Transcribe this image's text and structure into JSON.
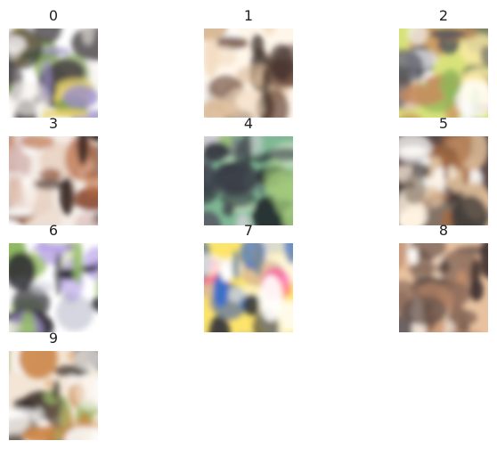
{
  "figure": {
    "panels": [
      {
        "title": "0",
        "palette": [
          "#ffffff",
          "#f6f2ee",
          "#4a4446",
          "#9c8fc8",
          "#e3cf6a",
          "#7a9a4a",
          "#2e2a30"
        ]
      },
      {
        "title": "1",
        "palette": [
          "#fff6ea",
          "#f3dcc2",
          "#e9c9a6",
          "#6a4a3c",
          "#d8b896",
          "#ffffff",
          "#3a2c28"
        ]
      },
      {
        "title": "2",
        "palette": [
          "#d8e27a",
          "#fbeaa6",
          "#8fb85a",
          "#4c4e5a",
          "#f1f0f2",
          "#c88a5a",
          "#ffffff"
        ]
      },
      {
        "title": "3",
        "palette": [
          "#f4ece6",
          "#b8683e",
          "#ffffff",
          "#8a4a30",
          "#d6b8b4",
          "#3c2a26",
          "#e8d2c2"
        ]
      },
      {
        "title": "4",
        "palette": [
          "#7fb894",
          "#3a3e46",
          "#c8e2c2",
          "#555a64",
          "#d0cfd6",
          "#a2c97c",
          "#1e2228"
        ]
      },
      {
        "title": "5",
        "palette": [
          "#5a4a48",
          "#fff2e0",
          "#ffffff",
          "#a86a3e",
          "#2c2a2c",
          "#d8b896",
          "#8a7a6a"
        ]
      },
      {
        "title": "6",
        "palette": [
          "#ffffff",
          "#e8f0c6",
          "#4a4850",
          "#b9a4e8",
          "#8fb860",
          "#cfd0da",
          "#2e2c34"
        ]
      },
      {
        "title": "7",
        "palette": [
          "#fde46a",
          "#ff4aa0",
          "#3a6ec8",
          "#ffffff",
          "#7a8a94",
          "#d8b896",
          "#2c2e36"
        ]
      },
      {
        "title": "8",
        "palette": [
          "#e8c2a0",
          "#ffffff",
          "#5c4a44",
          "#c28c6a",
          "#f4e6d8",
          "#8a6a5a",
          "#3a2e2c"
        ]
      },
      {
        "title": "9",
        "palette": [
          "#f3e6d6",
          "#c9803e",
          "#ffffff",
          "#6a5a4a",
          "#9cb86a",
          "#e8b88a",
          "#3a302a"
        ]
      }
    ]
  }
}
